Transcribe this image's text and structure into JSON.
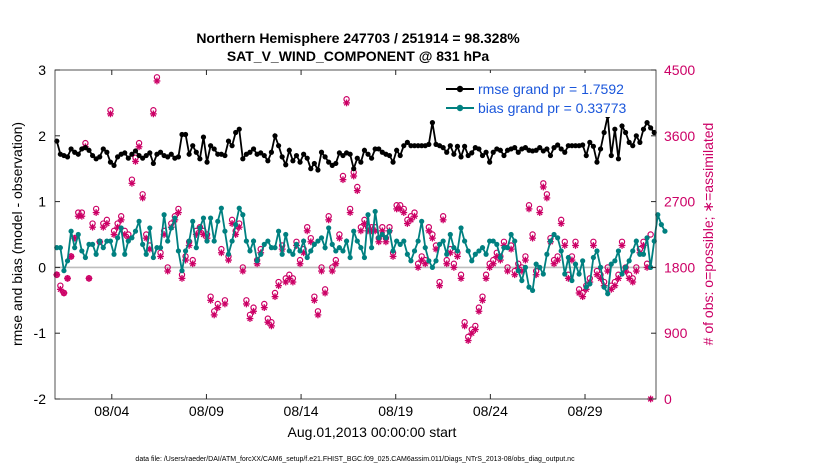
{
  "chart_data": {
    "type": "line",
    "title_line1": "Northern Hemisphere 247703 / 251914 = 98.328%",
    "title_line2": "SAT_V_WIND_COMPONENT @ 831 hPa",
    "xlabel": "Aug.01,2013 00:00:00 start",
    "ylabel_left": "rmse and bias (model - observation)",
    "ylabel_right": "# of obs: o=possible; ∗=assimilated",
    "footnote": "data file: /Users/raeder/DAI/ATM_forcXX/CAM6_setup/f.e21.FHIST_BGC.f09_025.CAM6assim.011/Diags_NTrS_2013-08/obs_diag_output.nc",
    "x_start_day": 1,
    "x_end_day": 32.75,
    "xticks": [
      {
        "day": 4,
        "label": "08/04"
      },
      {
        "day": 9,
        "label": "08/09"
      },
      {
        "day": 14,
        "label": "08/14"
      },
      {
        "day": 19,
        "label": "08/19"
      },
      {
        "day": 24,
        "label": "08/24"
      },
      {
        "day": 29,
        "label": "08/29"
      }
    ],
    "ylim_left": [
      -2,
      3
    ],
    "yticks_left": [
      "3",
      "2",
      "1",
      "0",
      "-1",
      "-2"
    ],
    "ylim_right": [
      0,
      4500
    ],
    "yticks_right": [
      "4500",
      "3600",
      "2700",
      "1800",
      "900",
      "0"
    ],
    "legend": {
      "location": "top-right",
      "entries": [
        {
          "label": "rmse grand pr = 1.7592",
          "color": "#000000"
        },
        {
          "label": "bias grand pr = 0.33773",
          "color": "#008080"
        }
      ]
    },
    "series": [
      {
        "name": "rmse",
        "color": "#000000",
        "values": [
          1.92,
          1.72,
          1.7,
          1.68,
          1.8,
          1.75,
          1.72,
          1.8,
          1.82,
          1.78,
          1.7,
          1.65,
          1.68,
          1.8,
          1.75,
          1.6,
          1.55,
          1.68,
          1.72,
          1.74,
          1.66,
          1.72,
          1.77,
          1.7,
          1.66,
          1.7,
          1.74,
          1.58,
          1.72,
          1.75,
          1.7,
          1.68,
          1.72,
          1.66,
          1.68,
          2.02,
          2.02,
          1.72,
          1.85,
          1.75,
          1.65,
          1.98,
          1.6,
          1.85,
          1.8,
          1.72,
          1.72,
          1.7,
          1.92,
          1.85,
          2.05,
          2.1,
          1.65,
          1.72,
          1.75,
          1.8,
          1.72,
          1.74,
          1.7,
          1.62,
          1.75,
          2.0,
          1.85,
          1.68,
          1.56,
          1.78,
          1.62,
          1.7,
          1.6,
          1.72,
          1.66,
          1.5,
          1.58,
          1.48,
          1.75,
          1.68,
          1.6,
          1.55,
          1.58,
          1.74,
          1.7,
          1.74,
          1.72,
          1.5,
          1.66,
          1.6,
          1.78,
          1.72,
          1.66,
          1.8,
          1.8,
          1.75,
          1.72,
          1.7,
          1.6,
          1.78,
          1.7,
          1.85,
          1.9,
          1.85,
          1.85,
          1.85,
          1.85,
          1.85,
          1.87,
          2.2,
          1.87,
          1.85,
          1.82,
          1.75,
          1.85,
          1.72,
          1.84,
          1.68,
          1.84,
          1.7,
          1.74,
          1.82,
          1.8,
          1.7,
          1.75,
          1.6,
          1.75,
          1.8,
          1.78,
          1.7,
          1.78,
          1.8,
          1.82,
          1.75,
          1.8,
          1.82,
          1.78,
          1.77,
          1.78,
          1.82,
          1.77,
          1.8,
          1.7,
          1.82,
          1.86,
          1.8,
          1.75,
          1.85,
          1.85,
          1.85,
          1.85,
          1.86,
          1.7,
          1.9,
          1.84,
          1.6,
          1.8,
          2.05,
          2.3,
          1.7,
          2.1,
          1.65,
          2.15,
          2.05,
          1.9,
          1.85,
          2.0,
          1.9,
          2.1,
          2.2,
          2.12,
          2.05
        ]
      },
      {
        "name": "bias",
        "color": "#008080",
        "values": [
          0.3,
          0.3,
          -0.05,
          0.1,
          0.55,
          0.3,
          0.5,
          0.25,
          0.15,
          0.35,
          0.35,
          0.2,
          0.4,
          0.3,
          0.4,
          0.4,
          0.2,
          0.45,
          0.6,
          0.2,
          0.4,
          0.45,
          0.55,
          0.7,
          0.35,
          0.2,
          0.6,
          0.15,
          0.3,
          0.3,
          0.8,
          0.4,
          0.6,
          0.75,
          0.25,
          -0.05,
          0.25,
          0.4,
          0.7,
          0.3,
          0.6,
          0.75,
          0.4,
          0.75,
          0.4,
          0.7,
          0.9,
          0.55,
          0.2,
          0.4,
          0.65,
          0.9,
          0.8,
          0.4,
          0.25,
          0.4,
          0.1,
          0.2,
          0.35,
          0.4,
          0.3,
          0.3,
          0.55,
          0.2,
          0.5,
          0.25,
          0.2,
          0.35,
          0.25,
          0.4,
          0.15,
          0.25,
          0.35,
          0.4,
          0.45,
          0.3,
          0.6,
          0.35,
          0.25,
          0.3,
          0.25,
          0.4,
          0.15,
          0.55,
          0.4,
          0.3,
          0.15,
          0.8,
          0.3,
          0.85,
          0.45,
          0.5,
          0.45,
          0.55,
          0.25,
          0.4,
          0.35,
          0.4,
          0.2,
          0.1,
          0.25,
          0.4,
          0.7,
          0.3,
          0.1,
          0.0,
          0.1,
          0.35,
          0.4,
          0.2,
          0.5,
          0.3,
          0.25,
          0.6,
          0.4,
          0.25,
          0.1,
          0.2,
          0.25,
          0.3,
          0.2,
          0.4,
          0.4,
          0.35,
          0.15,
          0.3,
          0.3,
          0.5,
          0.4,
          -0.05,
          -0.2,
          0.0,
          -0.3,
          -0.35,
          0.05,
          0.0,
          -0.1,
          0.2,
          0.4,
          0.5,
          0.45,
          0.25,
          -0.1,
          0.15,
          -0.2,
          0.05,
          -0.1,
          0.1,
          -0.3,
          -0.25,
          0.15,
          0.25,
          0.0,
          -0.3,
          -0.4,
          0.05,
          0.1,
          0.25,
          -0.1,
          0.0,
          0.1,
          0.25,
          0.4,
          0.2,
          0.2,
          0.45,
          0.0,
          0.4,
          0.8,
          0.65,
          0.55
        ]
      },
      {
        "name": "obs possible",
        "color": "#cc0066",
        "axis": "right",
        "values": [
          1700,
          1550,
          1450,
          1650,
          1950,
          2200,
          2550,
          2550,
          3500,
          1650,
          2400,
          2600,
          2150,
          2400,
          2450,
          3950,
          2300,
          2400,
          2500,
          2300,
          2250,
          3000,
          3300,
          3500,
          2800,
          2250,
          2100,
          3950,
          4400,
          2000,
          2300,
          1800,
          2400,
          2500,
          2600,
          1700,
          1950,
          2150,
          1900,
          2300,
          2350,
          2300,
          2250,
          1400,
          1200,
          1300,
          2050,
          1350,
          1950,
          2450,
          2300,
          2400,
          1800,
          1350,
          1150,
          1250,
          1900,
          2050,
          1300,
          1100,
          1050,
          1450,
          1600,
          2100,
          1650,
          1700,
          1650,
          2150,
          1900,
          2050,
          2350,
          2200,
          1400,
          1200,
          1800,
          1500,
          2500,
          1800,
          1900,
          2250,
          3050,
          4100,
          2600,
          3100,
          2900,
          2350,
          2450,
          2350,
          2350,
          2350,
          2200,
          2350,
          2200,
          2350,
          2000,
          2650,
          2650,
          2600,
          2450,
          2500,
          2550,
          1850,
          1950,
          1900,
          2350,
          2250,
          2100,
          1600,
          2500,
          1900,
          2050,
          1850,
          2000,
          1700,
          1050,
          850,
          950,
          1000,
          1250,
          1400,
          1700,
          1850,
          1900,
          2000,
          1950,
          2150,
          1800,
          2100,
          1750,
          1850,
          1800,
          1950,
          2650,
          2250,
          1750,
          2600,
          2950,
          2800,
          2200,
          1900,
          1950,
          2450,
          2150,
          1700,
          1950,
          2150,
          1500,
          1450,
          1550,
          1650,
          2150,
          1750,
          1700,
          1600,
          1800,
          1550,
          1600,
          1700,
          2150,
          1800,
          1700,
          1650,
          1800,
          2050,
          2150,
          1850,
          2250
        ]
      },
      {
        "name": "obs assimilated",
        "color": "#cc0066",
        "axis": "right",
        "values": [
          1700,
          1500,
          1450,
          1650,
          1950,
          2200,
          2500,
          2500,
          3450,
          1650,
          2350,
          2550,
          2150,
          2350,
          2400,
          3900,
          2250,
          2350,
          2450,
          2250,
          2200,
          2950,
          3250,
          3450,
          2750,
          2200,
          2050,
          3900,
          4350,
          1950,
          2250,
          1750,
          2350,
          2450,
          2550,
          1650,
          1900,
          2100,
          1850,
          2250,
          2300,
          2250,
          2200,
          1350,
          1150,
          1250,
          2000,
          1300,
          1900,
          2400,
          2250,
          2350,
          1750,
          1300,
          1100,
          1200,
          1850,
          2000,
          1250,
          1050,
          1000,
          1400,
          1550,
          2050,
          1600,
          1650,
          1600,
          2100,
          1850,
          2000,
          2300,
          2150,
          1350,
          1150,
          1750,
          1450,
          2450,
          1750,
          1850,
          2200,
          3000,
          4050,
          2550,
          3050,
          2850,
          2300,
          2400,
          2300,
          2300,
          2300,
          2150,
          2300,
          2150,
          2300,
          1950,
          2600,
          2600,
          2550,
          2400,
          2450,
          2500,
          1800,
          1900,
          1850,
          2300,
          2200,
          2050,
          1550,
          2450,
          1850,
          2000,
          1800,
          1950,
          1650,
          1000,
          800,
          900,
          950,
          1200,
          1350,
          1650,
          1800,
          1850,
          1950,
          1900,
          2100,
          1750,
          2050,
          1700,
          1800,
          1750,
          1900,
          2600,
          2200,
          1700,
          2550,
          2900,
          2750,
          2150,
          1850,
          1900,
          2400,
          2100,
          1650,
          1900,
          2100,
          1450,
          1400,
          1500,
          1600,
          2100,
          1700,
          1650,
          1550,
          1750,
          1500,
          1550,
          1650,
          2100,
          1750,
          1650,
          1600,
          1750,
          2000,
          2100,
          1800,
          0
        ]
      }
    ]
  }
}
